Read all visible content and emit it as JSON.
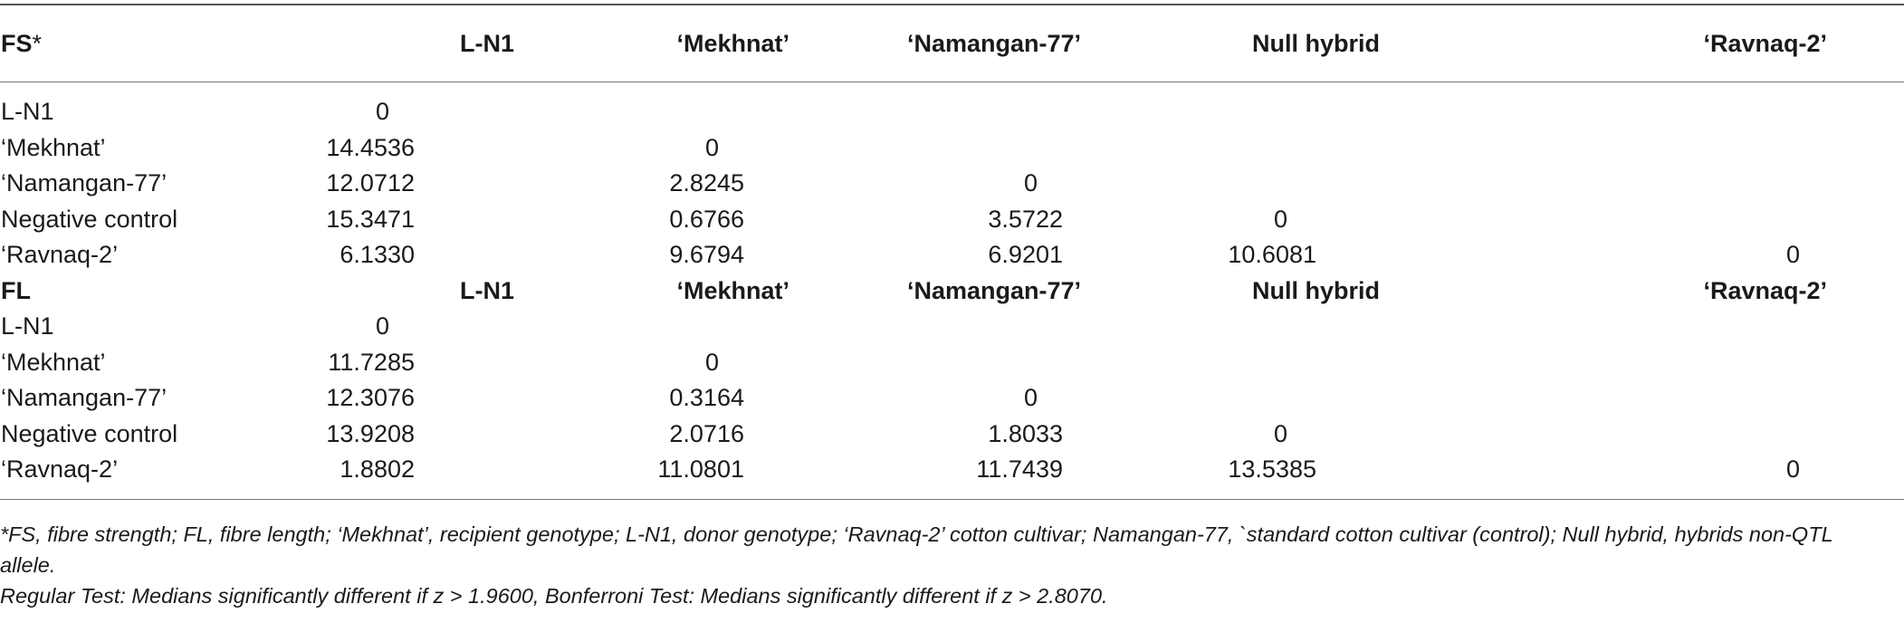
{
  "table": {
    "columns": [
      "L-N1",
      "‘Mekhnat’",
      "‘Namangan-77’",
      "Null hybrid",
      "‘Ravnaq-2’"
    ],
    "sections": [
      {
        "label": "FS",
        "label_mark": "*",
        "rows": [
          {
            "name": "L-N1",
            "values": [
              "0",
              "",
              "",
              "",
              ""
            ]
          },
          {
            "name": "‘Mekhnat’",
            "values": [
              "14.4536",
              "0",
              "",
              "",
              ""
            ]
          },
          {
            "name": "‘Namangan-77’",
            "values": [
              "12.0712",
              "2.8245",
              "0",
              "",
              ""
            ]
          },
          {
            "name": "Negative control",
            "values": [
              "15.3471",
              "0.6766",
              "3.5722",
              "0",
              ""
            ]
          },
          {
            "name": "‘Ravnaq-2’",
            "values": [
              "6.1330",
              "9.6794",
              "6.9201",
              "10.6081",
              "0"
            ]
          }
        ]
      },
      {
        "label": "FL",
        "label_mark": "",
        "rows": [
          {
            "name": "L-N1",
            "values": [
              "0",
              "",
              "",
              "",
              ""
            ]
          },
          {
            "name": "‘Mekhnat’",
            "values": [
              "11.7285",
              "0",
              "",
              "",
              ""
            ]
          },
          {
            "name": "‘Namangan-77’",
            "values": [
              "12.3076",
              "0.3164",
              "0",
              "",
              ""
            ]
          },
          {
            "name": "Negative control",
            "values": [
              "13.9208",
              "2.0716",
              "1.8033",
              "0",
              ""
            ]
          },
          {
            "name": "‘Ravnaq-2’",
            "values": [
              "1.8802",
              "11.0801",
              "11.7439",
              "13.5385",
              "0"
            ]
          }
        ]
      }
    ]
  },
  "footnotes": [
    "*FS, fibre strength; FL, fibre length; ‘Mekhnat’, recipient genotype; L-N1, donor genotype; ‘Ravnaq-2’ cotton cultivar; Namangan-77, `standard cotton cultivar (control); Null hybrid, hybrids non-QTL allele.",
    "Regular Test: Medians significantly different if z > 1.9600, Bonferroni Test: Medians significantly different if z > 2.8070."
  ]
}
